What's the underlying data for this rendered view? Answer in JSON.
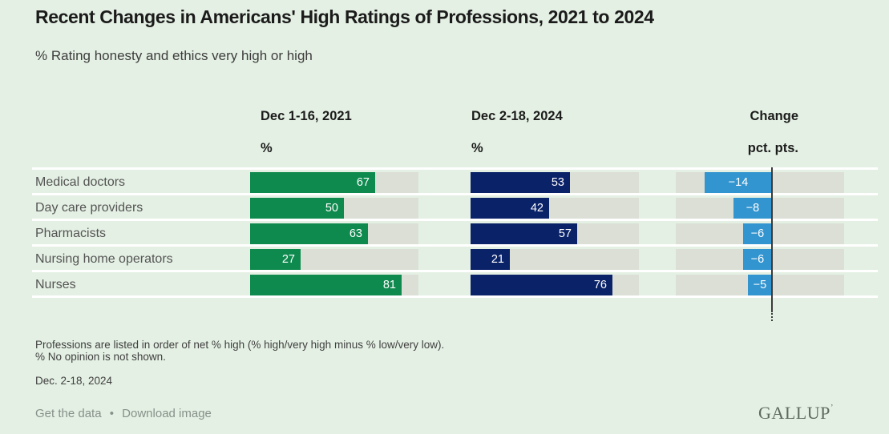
{
  "title": "Recent Changes in Americans' High Ratings of Professions, 2021 to 2024",
  "subtitle": "% Rating honesty and ethics very high or high",
  "header": {
    "col_2021": {
      "label": "Dec 1-16, 2021",
      "unit": "%"
    },
    "col_2024": {
      "label": "Dec 2-18, 2024",
      "unit": "%"
    },
    "col_change": {
      "label": "Change",
      "unit": "pct. pts."
    }
  },
  "chart_data": {
    "type": "bar",
    "orientation": "horizontal",
    "title": "Recent Changes in Americans' High Ratings of Professions, 2021 to 2024",
    "subtitle": "% Rating honesty and ethics very high or high",
    "categories": [
      "Medical doctors",
      "Day care providers",
      "Pharmacists",
      "Nursing home operators",
      "Nurses"
    ],
    "series": [
      {
        "name": "Dec 1-16, 2021",
        "unit": "%",
        "values": [
          67,
          50,
          63,
          27,
          81
        ],
        "color": "#0e8a4e"
      },
      {
        "name": "Dec 2-18, 2024",
        "unit": "%",
        "values": [
          53,
          42,
          57,
          21,
          76
        ],
        "color": "#0a2268"
      },
      {
        "name": "Change",
        "unit": "pct. pts.",
        "values": [
          -14,
          -8,
          -6,
          -6,
          -5
        ],
        "color": "#3395cf"
      }
    ],
    "pct_axis": {
      "min": 0,
      "max": 90
    },
    "change_axis": {
      "min": -20,
      "max": 15,
      "zero_line": true
    },
    "grid": false,
    "legend_position": "none",
    "sort_note": "Professions are listed in order of net % high"
  },
  "notes": [
    "Professions are listed in order of net % high (% high/very high minus % low/very low).",
    "% No opinion is not shown."
  ],
  "date_label": "Dec. 2-18, 2024",
  "footer": {
    "get_data_label": "Get the data",
    "separator": "•",
    "download_label": "Download image",
    "logo": "GALLUP",
    "logo_mark": "ʼ"
  },
  "colors": {
    "background": "#e4f0e3",
    "track": "#dbdfd5",
    "bar_2021": "#0e8a4e",
    "bar_2024": "#0a2268",
    "bar_change": "#3395cf",
    "zero_line": "#3b3b3b",
    "bar_label": "#ffffff"
  }
}
